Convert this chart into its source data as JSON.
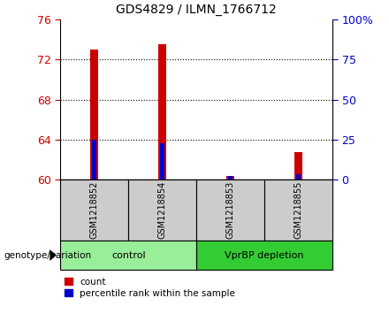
{
  "title": "GDS4829 / ILMN_1766712",
  "samples": [
    "GSM1218852",
    "GSM1218854",
    "GSM1218853",
    "GSM1218855"
  ],
  "groups": [
    {
      "label": "control",
      "indices": [
        0,
        1
      ],
      "color": "#99ee99"
    },
    {
      "label": "VprBP depletion",
      "indices": [
        2,
        3
      ],
      "color": "#33cc33"
    }
  ],
  "red_values": [
    73.0,
    73.5,
    60.35,
    62.8
  ],
  "blue_values_pct": [
    25.0,
    23.0,
    2.5,
    3.5
  ],
  "ylim_left": [
    60,
    76
  ],
  "ylim_right": [
    0,
    100
  ],
  "yticks_left": [
    60,
    64,
    68,
    72,
    76
  ],
  "yticks_right": [
    0,
    25,
    50,
    75,
    100
  ],
  "ytick_right_labels": [
    "0",
    "25",
    "50",
    "75",
    "100%"
  ],
  "red_bar_width": 0.12,
  "blue_bar_width": 0.06,
  "red_color": "#cc0000",
  "blue_color": "#0000cc",
  "grid_color": "#000000",
  "bg_plot": "#ffffff",
  "bg_figure": "#ffffff",
  "tick_color_left": "#cc0000",
  "tick_color_right": "#0000cc",
  "gray_color": "#cccccc",
  "legend_labels": [
    "count",
    "percentile rank within the sample"
  ],
  "genotype_label": "genotype/variation"
}
